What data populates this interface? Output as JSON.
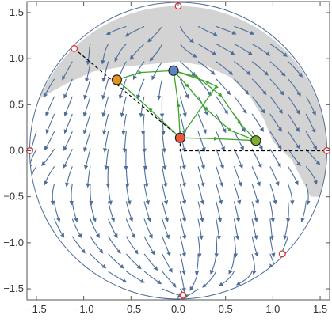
{
  "chart_data": {
    "type": "scatter",
    "title": "",
    "xlabel": "",
    "ylabel": "",
    "xlim": [
      -1.6,
      1.6
    ],
    "ylim": [
      -1.62,
      1.62
    ],
    "x_ticks": [
      -1.5,
      -1.0,
      -0.5,
      0.0,
      0.5,
      1.0,
      1.5
    ],
    "x_tick_labels": [
      "−1.5",
      "−1.0",
      "−0.5",
      "0.0",
      "0.5",
      "1.0",
      "1.5"
    ],
    "y_ticks": [
      -1.5,
      -1.0,
      -0.5,
      0.0,
      0.5,
      1.0,
      1.5
    ],
    "y_tick_labels": [
      "−1.5",
      "−1.0",
      "−0.5",
      "0.0",
      "0.5",
      "1.0",
      "1.5"
    ],
    "disk_radius": 1.571,
    "grid": false,
    "legend": "none",
    "colors": {
      "stream": "#4d6f9a",
      "shade": "#d3d3d3",
      "green_orbit": "#3aa52a",
      "boundary_point": "#e03131"
    },
    "shaded_region": {
      "description_color": "#d3d3d3",
      "outer_boundary": "circle r=1.571",
      "inner_boundary_points": [
        [
          -1.48,
          0.56
        ],
        [
          -1.2,
          0.72
        ],
        [
          -0.9,
          0.86
        ],
        [
          -0.6,
          0.91
        ],
        [
          -0.3,
          0.94
        ],
        [
          0.0,
          0.97
        ],
        [
          0.3,
          0.92
        ],
        [
          0.55,
          0.8
        ],
        [
          0.75,
          0.6
        ],
        [
          0.9,
          0.35
        ],
        [
          1.0,
          0.1
        ],
        [
          1.1,
          0.0
        ],
        [
          1.2,
          -0.1
        ],
        [
          1.4,
          -0.5
        ],
        [
          1.49,
          -0.5
        ]
      ]
    },
    "dashed_lines": [
      {
        "points": [
          [
            -1.1,
            1.11
          ],
          [
            0.02,
            0.14
          ]
        ],
        "color": "#000000"
      },
      {
        "points": [
          [
            0.02,
            0.14
          ],
          [
            0.02,
            0.0
          ],
          [
            1.571,
            0.0
          ]
        ],
        "color": "#000000"
      }
    ],
    "equilibria": [
      {
        "x": 0.02,
        "y": 0.14,
        "color": "#e8583c"
      },
      {
        "x": -0.05,
        "y": 0.87,
        "color": "#5b84c4"
      },
      {
        "x": -0.65,
        "y": 0.77,
        "color": "#e8921e"
      },
      {
        "x": 0.82,
        "y": 0.11,
        "color": "#7ab02e"
      }
    ],
    "boundary_points": [
      {
        "x": 0.0,
        "y": 1.571
      },
      {
        "x": -1.1,
        "y": 1.11
      },
      {
        "x": -1.571,
        "y": 0.0
      },
      {
        "x": 1.571,
        "y": 0.0
      },
      {
        "x": 1.1,
        "y": -1.12
      },
      {
        "x": 0.05,
        "y": -1.57
      }
    ],
    "green_orbits": [
      [
        [
          -0.65,
          0.77
        ],
        [
          -0.4,
          0.85
        ],
        [
          -0.05,
          0.87
        ]
      ],
      [
        [
          -0.05,
          0.87
        ],
        [
          0.2,
          0.8
        ],
        [
          0.45,
          0.6
        ],
        [
          0.65,
          0.3
        ],
        [
          0.82,
          0.11
        ]
      ],
      [
        [
          -0.05,
          0.87
        ],
        [
          0.1,
          0.7
        ],
        [
          0.3,
          0.45
        ],
        [
          0.55,
          0.22
        ],
        [
          0.82,
          0.11
        ]
      ],
      [
        [
          0.02,
          0.14
        ],
        [
          0.4,
          0.13
        ],
        [
          0.82,
          0.11
        ]
      ],
      [
        [
          0.02,
          0.14
        ],
        [
          -0.3,
          0.45
        ],
        [
          -0.65,
          0.77
        ]
      ],
      [
        [
          0.02,
          0.14
        ],
        [
          0.0,
          0.5
        ],
        [
          -0.05,
          0.87
        ]
      ],
      [
        [
          0.02,
          0.14
        ],
        [
          0.4,
          0.7
        ],
        [
          0.3,
          0.75
        ],
        [
          -0.05,
          0.87
        ]
      ]
    ]
  }
}
